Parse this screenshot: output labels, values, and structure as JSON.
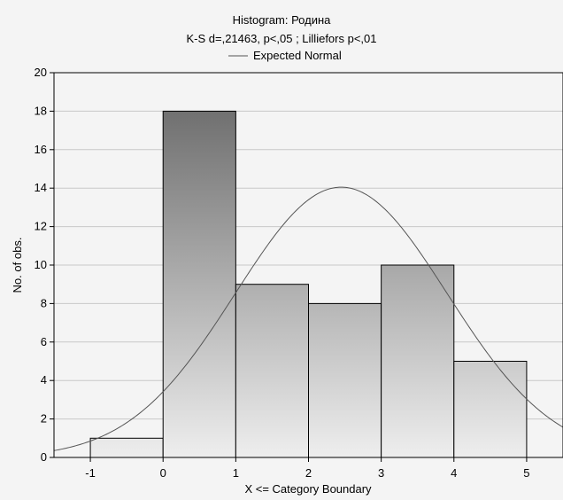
{
  "chart_data": {
    "type": "histogram",
    "title": "Histogram: Родина",
    "subtitle": "K-S d=,21463, p<,05 ; Lilliefors p<,01",
    "xlabel": "X <= Category Boundary",
    "ylabel": "No. of obs.",
    "legend": {
      "position": "top-center",
      "label": "Expected Normal"
    },
    "xlim": [
      -1.5,
      5.5
    ],
    "ylim": [
      0,
      20
    ],
    "xticks": [
      "-1",
      "0",
      "1",
      "2",
      "3",
      "4",
      "5"
    ],
    "yticks": [
      "0",
      "2",
      "4",
      "6",
      "8",
      "10",
      "12",
      "14",
      "16",
      "18",
      "20"
    ],
    "grid": true,
    "bins": [
      {
        "x0": -1,
        "x1": 0,
        "count": 1
      },
      {
        "x0": 0,
        "x1": 1,
        "count": 18
      },
      {
        "x0": 1,
        "x1": 2,
        "count": 9
      },
      {
        "x0": 2,
        "x1": 3,
        "count": 8
      },
      {
        "x0": 3,
        "x1": 4,
        "count": 10
      },
      {
        "x0": 4,
        "x1": 5,
        "count": 5
      }
    ],
    "expected_normal": {
      "mean": 2.45,
      "sd": 1.457,
      "peak": 14.05
    },
    "colors": {
      "bar_top": "#707070",
      "bar_bottom": "#eeeeee",
      "curve": "#555555",
      "background": "#f4f4f4"
    }
  }
}
